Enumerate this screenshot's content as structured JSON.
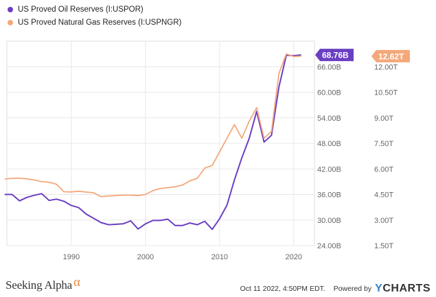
{
  "chart_data": {
    "type": "line",
    "series": [
      {
        "name": "US Proved Oil Reserves (I:USPOR)",
        "color": "#6a3fc1",
        "axis": "left",
        "last_value_label": "68.76B",
        "x": [
          1981,
          1982,
          1983,
          1984,
          1985,
          1986,
          1987,
          1988,
          1989,
          1990,
          1991,
          1992,
          1993,
          1994,
          1995,
          1996,
          1997,
          1998,
          1999,
          2000,
          2001,
          2002,
          2003,
          2004,
          2005,
          2006,
          2007,
          2008,
          2009,
          2010,
          2011,
          2012,
          2013,
          2014,
          2015,
          2016,
          2017,
          2018,
          2019,
          2020,
          2021
        ],
        "y": [
          36.0,
          36.0,
          34.5,
          35.3,
          35.8,
          36.2,
          34.6,
          34.9,
          34.4,
          33.4,
          32.9,
          31.4,
          30.4,
          29.4,
          28.9,
          29.0,
          29.1,
          29.8,
          27.9,
          29.1,
          29.9,
          29.9,
          30.2,
          28.7,
          28.7,
          29.3,
          28.9,
          29.7,
          27.8,
          30.3,
          33.5,
          39.4,
          44.6,
          49.2,
          55.5,
          48.3,
          49.9,
          61.2,
          68.7,
          68.6,
          68.76
        ]
      },
      {
        "name": "US Proved Natural Gas Reserves (I:USPNGR)",
        "color": "#f4a87a",
        "axis": "right",
        "last_value_label": "12.62T",
        "x": [
          1981,
          1982,
          1983,
          1984,
          1985,
          1986,
          1987,
          1988,
          1989,
          1990,
          1991,
          1992,
          1993,
          1994,
          1995,
          1996,
          1997,
          1998,
          1999,
          2000,
          2001,
          2002,
          2003,
          2004,
          2005,
          2006,
          2007,
          2008,
          2009,
          2010,
          2011,
          2012,
          2013,
          2014,
          2015,
          2016,
          2017,
          2018,
          2019,
          2020,
          2021
        ],
        "y": [
          5.4,
          5.45,
          5.45,
          5.42,
          5.35,
          5.25,
          5.22,
          5.1,
          4.66,
          4.65,
          4.69,
          4.64,
          4.6,
          4.37,
          4.41,
          4.43,
          4.46,
          4.46,
          4.43,
          4.5,
          4.72,
          4.85,
          4.9,
          4.95,
          5.05,
          5.3,
          5.45,
          6.05,
          6.2,
          7.0,
          7.8,
          8.6,
          7.8,
          8.8,
          9.6,
          7.8,
          8.2,
          11.6,
          12.75,
          12.6,
          12.62
        ]
      }
    ],
    "xticks": [
      1990,
      2000,
      2010,
      2020
    ],
    "xlim": [
      1981.3,
      2022.8
    ],
    "ylim_left": [
      24.0,
      72.0
    ],
    "yticks_left": [
      "24.00B",
      "30.00B",
      "36.00B",
      "42.00B",
      "48.00B",
      "54.00B",
      "60.00B",
      "66.00B"
    ],
    "yticks_left_values": [
      24,
      30,
      36,
      42,
      48,
      54,
      60,
      66
    ],
    "ylim_right": [
      1.5,
      13.5
    ],
    "yticks_right": [
      "1.50T",
      "3.00T",
      "4.50T",
      "6.00T",
      "7.50T",
      "9.00T",
      "10.50T",
      "12.00T"
    ],
    "yticks_right_values": [
      1.5,
      3.0,
      4.5,
      6.0,
      7.5,
      9.0,
      10.5,
      12.0
    ],
    "legend_position": "top-left",
    "grid": true
  },
  "footer": {
    "brand": "Seeking Alpha",
    "brand_symbol": "α",
    "timestamp": "Oct 11 2022, 4:50PM EDT.",
    "powered_by": "Powered by",
    "ycharts_y": "Y",
    "ycharts_rest": "CHARTS"
  }
}
